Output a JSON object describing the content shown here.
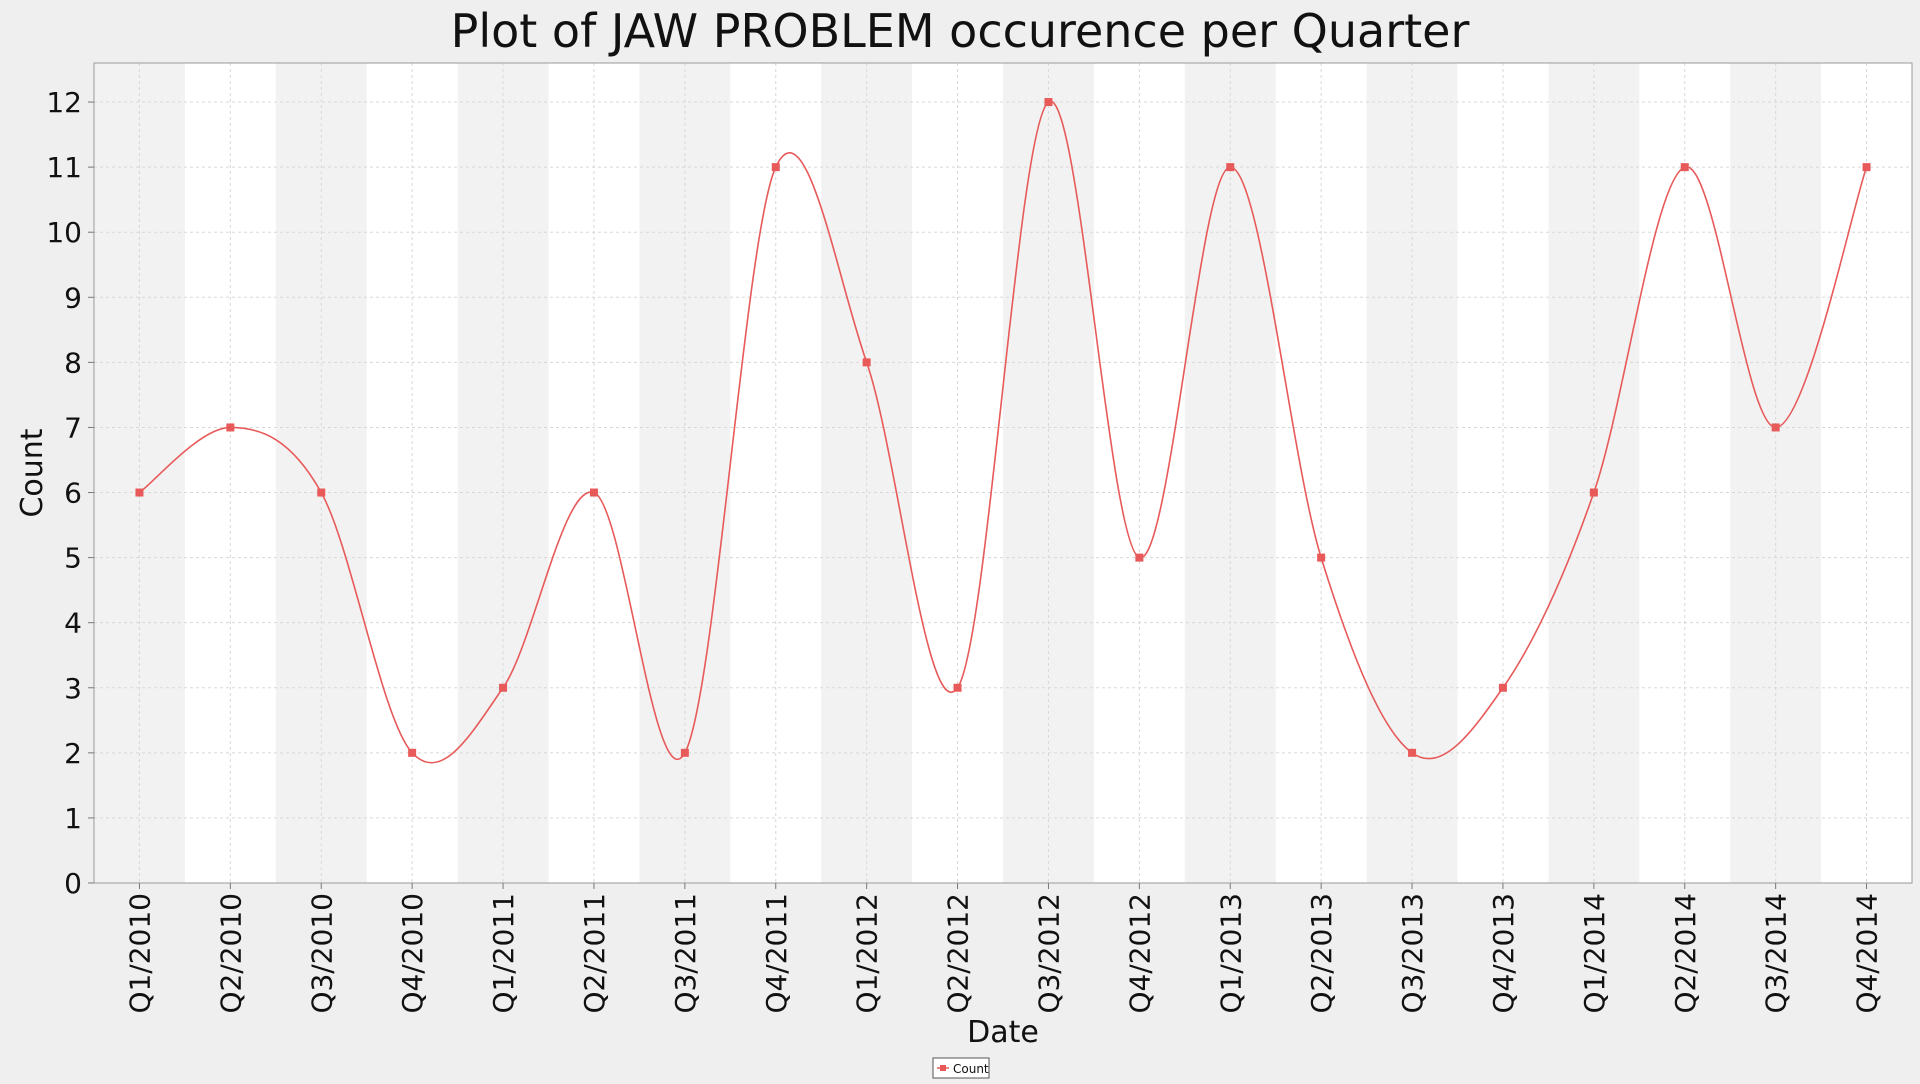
{
  "chart_data": {
    "type": "line",
    "title": "Plot of JAW PROBLEM occurence per Quarter",
    "xlabel": "Date",
    "ylabel": "Count",
    "categories": [
      "Q1/2010",
      "Q2/2010",
      "Q3/2010",
      "Q4/2010",
      "Q1/2011",
      "Q2/2011",
      "Q3/2011",
      "Q4/2011",
      "Q1/2012",
      "Q2/2012",
      "Q3/2012",
      "Q4/2012",
      "Q1/2013",
      "Q2/2013",
      "Q3/2013",
      "Q4/2013",
      "Q1/2014",
      "Q2/2014",
      "Q3/2014",
      "Q4/2014"
    ],
    "series": [
      {
        "name": "Count",
        "values": [
          6,
          7,
          6,
          2,
          3,
          6,
          2,
          11,
          8,
          3,
          12,
          5,
          11,
          5,
          2,
          3,
          6,
          11,
          7,
          11
        ],
        "color": "#e85a5a"
      }
    ],
    "ylim": [
      0,
      12.6
    ],
    "yticks": [
      0,
      1,
      2,
      3,
      4,
      5,
      6,
      7,
      8,
      9,
      10,
      11,
      12
    ],
    "grid": true,
    "smooth": true,
    "legend": "bottom-center",
    "colors": {
      "background": "#efefef",
      "plot_background": "#ffffff",
      "band": "#f2f2f2",
      "grid": "#d8d8d8"
    }
  }
}
